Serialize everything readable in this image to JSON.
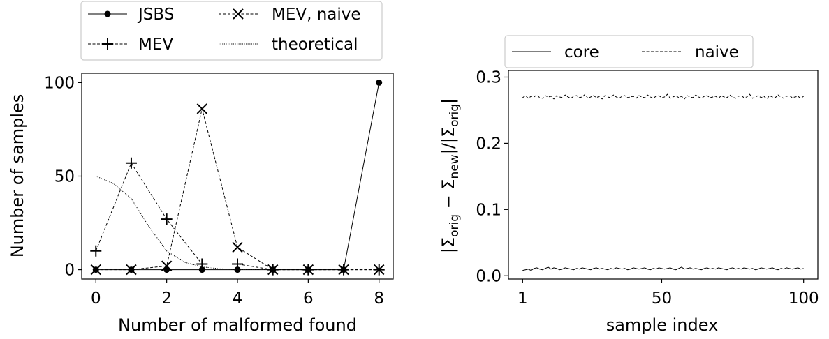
{
  "chart_data": [
    {
      "type": "line",
      "title": "",
      "xlabel": "Number of malformed found",
      "ylabel": "Number of samples",
      "xlim": [
        -0.4,
        8.4
      ],
      "ylim": [
        -5,
        105
      ],
      "xticks": [
        {
          "v": 0,
          "label": "0"
        },
        {
          "v": 2,
          "label": "2"
        },
        {
          "v": 4,
          "label": "4"
        },
        {
          "v": 6,
          "label": "6"
        },
        {
          "v": 8,
          "label": "8"
        }
      ],
      "yticks": [
        {
          "v": 0,
          "label": "0"
        },
        {
          "v": 50,
          "label": "50"
        },
        {
          "v": 100,
          "label": "100"
        }
      ],
      "legend_position": "above, outside",
      "series": [
        {
          "name": "JSBS",
          "style": "solid",
          "marker": "dot",
          "x": [
            0,
            1,
            2,
            3,
            4,
            5,
            6,
            7,
            8
          ],
          "y": [
            0,
            0,
            0,
            0,
            0,
            0,
            0,
            0,
            100
          ]
        },
        {
          "name": "MEV",
          "style": "dashed",
          "marker": "plus",
          "x": [
            0,
            1,
            2,
            3,
            4,
            5,
            6,
            7,
            8
          ],
          "y": [
            10,
            57,
            27,
            3,
            3,
            0,
            0,
            0,
            0
          ]
        },
        {
          "name": "MEV, naive",
          "style": "dashed",
          "marker": "x",
          "x": [
            0,
            1,
            2,
            3,
            4,
            5,
            6,
            7,
            8
          ],
          "y": [
            0,
            0,
            2,
            86,
            12,
            0,
            0,
            0,
            0
          ]
        },
        {
          "name": "theoretical",
          "style": "dotted",
          "marker": "none",
          "x": [
            0,
            0.5,
            1,
            1.5,
            2,
            2.5,
            3,
            3.5,
            4,
            5
          ],
          "y": [
            50,
            46,
            38,
            23,
            10,
            4,
            1.5,
            0.5,
            0.2,
            0
          ]
        }
      ]
    },
    {
      "type": "line",
      "title": "",
      "xlabel": "sample index",
      "ylabel": "|Σorig − Σnew|/|Σorig|",
      "xlim": [
        -4,
        105
      ],
      "ylim": [
        -0.005,
        0.31
      ],
      "xticks": [
        {
          "v": 1,
          "label": "1"
        },
        {
          "v": 50,
          "label": "50"
        },
        {
          "v": 100,
          "label": "100"
        }
      ],
      "yticks": [
        {
          "v": 0,
          "label": "0.0"
        },
        {
          "v": 0.1,
          "label": "0.1"
        },
        {
          "v": 0.2,
          "label": "0.2"
        },
        {
          "v": 0.3,
          "label": "0.3"
        }
      ],
      "legend_position": "above, outside",
      "series": [
        {
          "name": "core",
          "style": "solid",
          "x": [
            1,
            2,
            3,
            4,
            5,
            6,
            7,
            8,
            9,
            10,
            11,
            12,
            13,
            14,
            15,
            16,
            17,
            18,
            19,
            20,
            21,
            22,
            23,
            24,
            25,
            26,
            27,
            28,
            29,
            30,
            31,
            32,
            33,
            34,
            35,
            36,
            37,
            38,
            39,
            40,
            41,
            42,
            43,
            44,
            45,
            46,
            47,
            48,
            49,
            50,
            51,
            52,
            53,
            54,
            55,
            56,
            57,
            58,
            59,
            60,
            61,
            62,
            63,
            64,
            65,
            66,
            67,
            68,
            69,
            70,
            71,
            72,
            73,
            74,
            75,
            76,
            77,
            78,
            79,
            80,
            81,
            82,
            83,
            84,
            85,
            86,
            87,
            88,
            89,
            90,
            91,
            92,
            93,
            94,
            95,
            96,
            97,
            98,
            99,
            100
          ],
          "y": [
            0.008,
            0.009,
            0.01,
            0.008,
            0.011,
            0.012,
            0.01,
            0.009,
            0.011,
            0.013,
            0.01,
            0.012,
            0.011,
            0.009,
            0.01,
            0.012,
            0.011,
            0.01,
            0.009,
            0.011,
            0.01,
            0.012,
            0.011,
            0.01,
            0.009,
            0.011,
            0.012,
            0.01,
            0.011,
            0.01,
            0.009,
            0.011,
            0.01,
            0.012,
            0.011,
            0.01,
            0.011,
            0.009,
            0.01,
            0.012,
            0.011,
            0.01,
            0.011,
            0.012,
            0.01,
            0.009,
            0.011,
            0.01,
            0.012,
            0.011,
            0.01,
            0.011,
            0.012,
            0.01,
            0.009,
            0.011,
            0.013,
            0.01,
            0.011,
            0.012,
            0.01,
            0.011,
            0.01,
            0.009,
            0.011,
            0.012,
            0.01,
            0.011,
            0.01,
            0.012,
            0.011,
            0.01,
            0.009,
            0.011,
            0.012,
            0.01,
            0.011,
            0.01,
            0.012,
            0.011,
            0.01,
            0.011,
            0.009,
            0.01,
            0.012,
            0.011,
            0.01,
            0.011,
            0.012,
            0.01,
            0.009,
            0.011,
            0.01,
            0.012,
            0.011,
            0.01,
            0.011,
            0.012,
            0.01,
            0.011
          ]
        },
        {
          "name": "naive",
          "style": "dashed",
          "x": [
            1,
            2,
            3,
            4,
            5,
            6,
            7,
            8,
            9,
            10,
            11,
            12,
            13,
            14,
            15,
            16,
            17,
            18,
            19,
            20,
            21,
            22,
            23,
            24,
            25,
            26,
            27,
            28,
            29,
            30,
            31,
            32,
            33,
            34,
            35,
            36,
            37,
            38,
            39,
            40,
            41,
            42,
            43,
            44,
            45,
            46,
            47,
            48,
            49,
            50,
            51,
            52,
            53,
            54,
            55,
            56,
            57,
            58,
            59,
            60,
            61,
            62,
            63,
            64,
            65,
            66,
            67,
            68,
            69,
            70,
            71,
            72,
            73,
            74,
            75,
            76,
            77,
            78,
            79,
            80,
            81,
            82,
            83,
            84,
            85,
            86,
            87,
            88,
            89,
            90,
            91,
            92,
            93,
            94,
            95,
            96,
            97,
            98,
            99,
            100
          ],
          "y": [
            0.269,
            0.272,
            0.268,
            0.271,
            0.27,
            0.273,
            0.269,
            0.268,
            0.272,
            0.27,
            0.271,
            0.267,
            0.272,
            0.27,
            0.269,
            0.273,
            0.27,
            0.268,
            0.271,
            0.272,
            0.269,
            0.27,
            0.274,
            0.268,
            0.27,
            0.272,
            0.269,
            0.271,
            0.267,
            0.272,
            0.27,
            0.269,
            0.273,
            0.27,
            0.268,
            0.271,
            0.272,
            0.269,
            0.27,
            0.271,
            0.268,
            0.272,
            0.27,
            0.269,
            0.273,
            0.27,
            0.268,
            0.271,
            0.272,
            0.269,
            0.27,
            0.274,
            0.268,
            0.27,
            0.272,
            0.269,
            0.271,
            0.267,
            0.272,
            0.27,
            0.269,
            0.273,
            0.27,
            0.268,
            0.271,
            0.272,
            0.269,
            0.27,
            0.271,
            0.268,
            0.272,
            0.27,
            0.269,
            0.273,
            0.27,
            0.268,
            0.271,
            0.272,
            0.269,
            0.27,
            0.274,
            0.268,
            0.27,
            0.272,
            0.269,
            0.271,
            0.267,
            0.272,
            0.27,
            0.269,
            0.273,
            0.27,
            0.268,
            0.271,
            0.272,
            0.269,
            0.27,
            0.271,
            0.268,
            0.271
          ]
        }
      ]
    }
  ]
}
